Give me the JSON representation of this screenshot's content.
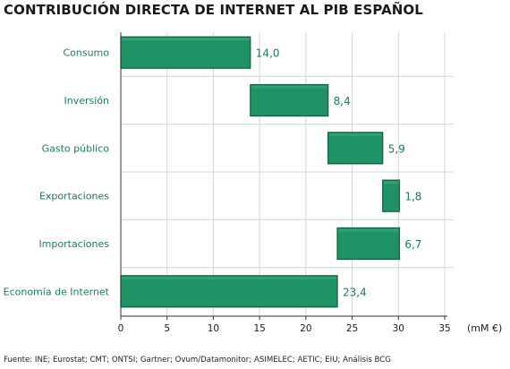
{
  "colors": {
    "bar": "#1e9366",
    "bar_edge": "#0f5a3c",
    "label": "#1e7a55",
    "grid": "#d4d4d4"
  },
  "chart_data": {
    "type": "bar",
    "orientation": "horizontal-waterfall",
    "title": "CONTRIBUCIÓN DIRECTA DE INTERNET AL PIB ESPAÑOL",
    "source": "Fuente: INE; Eurostat; CMT; ONTSI; Gartner; Ovum/Datamonitor; ASIMELEC; AETIC; EIU; Análisis BCG",
    "unit_label": "(mM €)",
    "categories": [
      "Consumo",
      "Inversión",
      "Gasto público",
      "Exportaciones",
      "Importaciones",
      "Economía de Internet"
    ],
    "values": [
      14.0,
      8.4,
      5.9,
      1.8,
      6.7,
      23.4
    ],
    "value_labels": [
      "14,0",
      "8,4",
      "5,9",
      "1,8",
      "6,7",
      "23,4"
    ],
    "bar_start": [
      0,
      14.0,
      22.4,
      28.3,
      23.4,
      0
    ],
    "bar_end": [
      14.0,
      22.4,
      28.3,
      30.1,
      30.1,
      23.4
    ],
    "xlim": [
      0,
      35
    ],
    "xticks": [
      0,
      5,
      10,
      15,
      20,
      25,
      30,
      35
    ],
    "grid": true
  }
}
